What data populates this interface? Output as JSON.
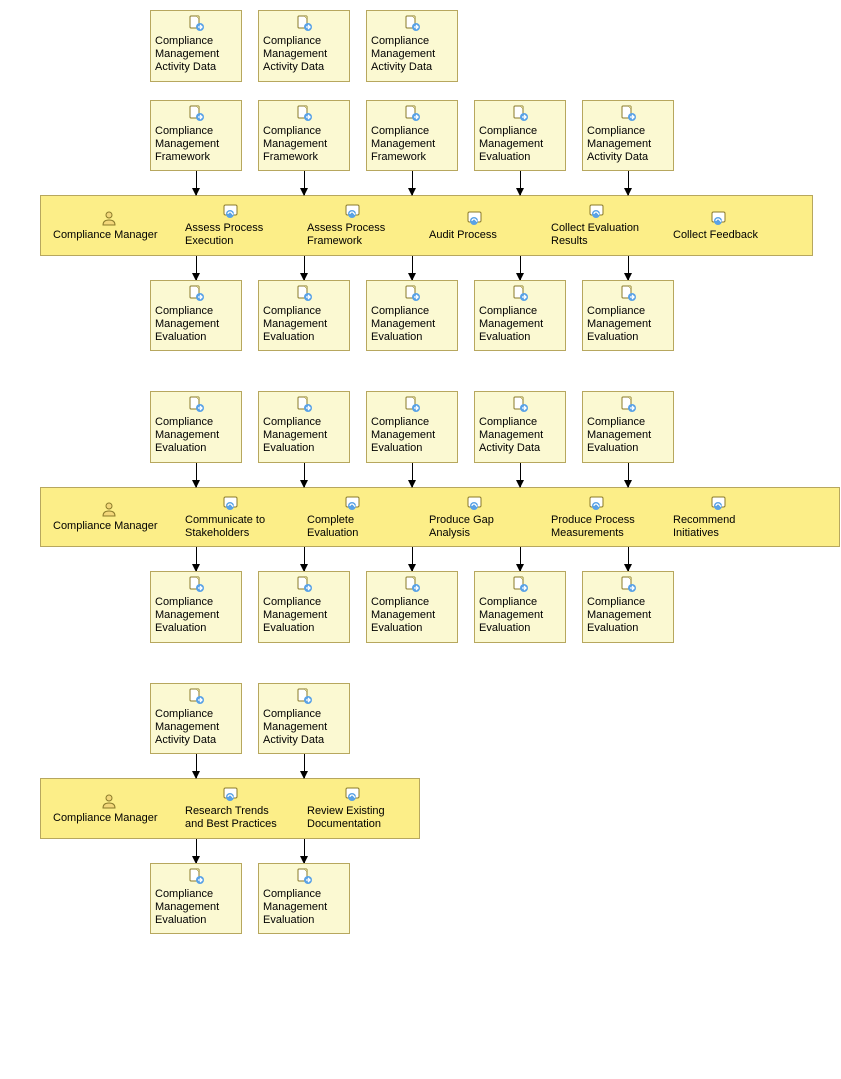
{
  "colors": {
    "node_bg": "#fbf9d2",
    "node_border": "#b7a75e",
    "activity_bg": "#fcee88",
    "arrow": "#000000",
    "text": "#000000"
  },
  "role_label": "Compliance Manager",
  "sections": [
    {
      "role": "Compliance Manager",
      "activity_bar_width": 773,
      "columns": [
        {
          "inputs": [
            "Compliance Management Activity Data",
            "Compliance Management Framework"
          ],
          "activity": "Assess Process Execution",
          "output": "Compliance Management Evaluation"
        },
        {
          "inputs": [
            "Compliance Management Activity Data",
            "Compliance Management Framework"
          ],
          "activity": "Assess Process Framework",
          "output": "Compliance Management Evaluation"
        },
        {
          "inputs": [
            "Compliance Management Activity Data",
            "Compliance Management Framework"
          ],
          "activity": "Audit Process",
          "output": "Compliance Management Evaluation"
        },
        {
          "inputs": [
            "Compliance Management Evaluation"
          ],
          "activity": "Collect Evaluation Results",
          "output": "Compliance Management Evaluation"
        },
        {
          "inputs": [
            "Compliance Management Activity Data"
          ],
          "activity": "Collect Feedback",
          "output": "Compliance Management Evaluation"
        }
      ]
    },
    {
      "role": "Compliance Manager",
      "activity_bar_width": 800,
      "columns": [
        {
          "inputs": [
            "Compliance Management Evaluation"
          ],
          "activity": "Communicate to Stakeholders",
          "output": "Compliance Management Evaluation"
        },
        {
          "inputs": [
            "Compliance Management Evaluation"
          ],
          "activity": "Complete Evaluation",
          "output": "Compliance Management Evaluation"
        },
        {
          "inputs": [
            "Compliance Management Evaluation"
          ],
          "activity": "Produce Gap Analysis",
          "output": "Compliance Management Evaluation"
        },
        {
          "inputs": [
            "Compliance Management Activity Data"
          ],
          "activity": "Produce Process Measurements",
          "output": "Compliance Management Evaluation"
        },
        {
          "inputs": [
            "Compliance Management Evaluation"
          ],
          "activity": "Recommend Initiatives",
          "output": "Compliance Management Evaluation"
        }
      ]
    },
    {
      "role": "Compliance Manager",
      "activity_bar_width": 380,
      "columns": [
        {
          "inputs": [
            "Compliance Management Activity Data"
          ],
          "activity": "Research Trends and Best Practices",
          "output": "Compliance Management Evaluation"
        },
        {
          "inputs": [
            "Compliance Management Activity Data"
          ],
          "activity": "Review Existing Documentation",
          "output": "Compliance Management Evaluation"
        }
      ]
    }
  ]
}
